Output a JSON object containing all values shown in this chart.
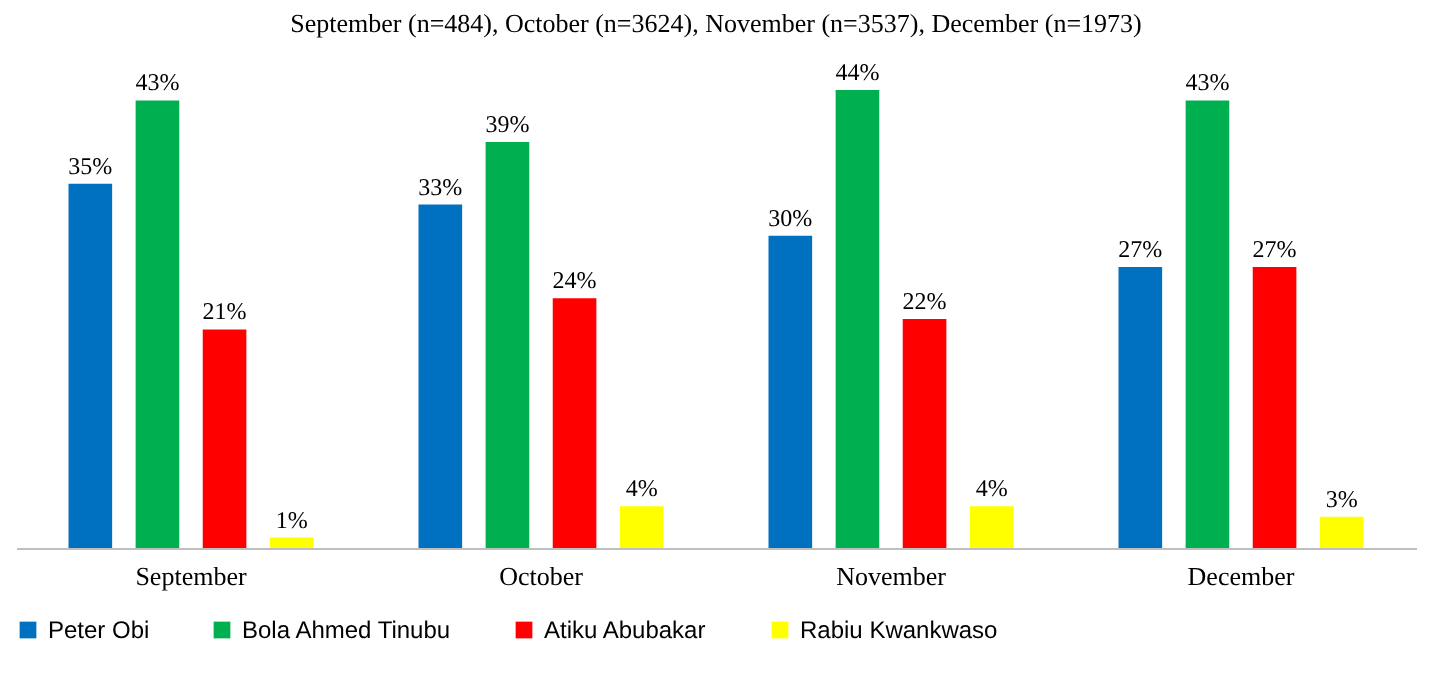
{
  "chart_data": {
    "type": "bar",
    "title": "September (n=484), October (n=3624), November (n=3537), December (n=1973)",
    "categories": [
      "September",
      "October",
      "November",
      "December"
    ],
    "series": [
      {
        "name": "Peter Obi",
        "color": "#0070c0",
        "values": [
          35,
          33,
          30,
          27
        ],
        "value_labels": [
          "35%",
          "33%",
          "30%",
          "27%"
        ]
      },
      {
        "name": "Bola Ahmed Tinubu",
        "color": "#00b050",
        "values": [
          43,
          39,
          44,
          43
        ],
        "value_labels": [
          "43%",
          "39%",
          "44%",
          "43%"
        ]
      },
      {
        "name": "Atiku Abubakar",
        "color": "#ff0000",
        "values": [
          21,
          24,
          22,
          27
        ],
        "value_labels": [
          "21%",
          "24%",
          "22%",
          "27%"
        ]
      },
      {
        "name": "Rabiu Kwankwaso",
        "color": "#ffff00",
        "values": [
          1,
          4,
          4,
          3
        ],
        "value_labels": [
          "1%",
          "4%",
          "4%",
          "3%"
        ]
      }
    ],
    "legend": "bottom"
  }
}
